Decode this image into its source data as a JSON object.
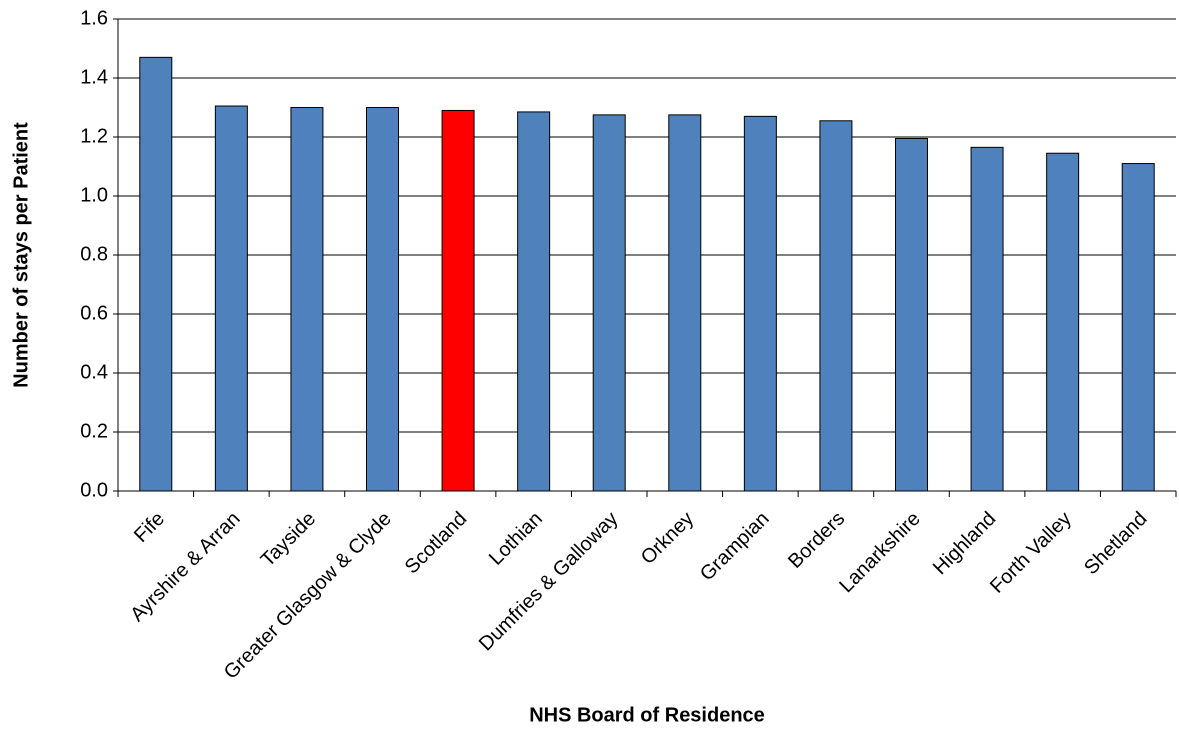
{
  "chart_data": {
    "type": "bar",
    "x_label": "NHS Board of Residence",
    "y_label": "Number of stays per Patient",
    "categories": [
      "Fife",
      "Ayrshire & Arran",
      "Tayside",
      "Greater Glasgow & Clyde",
      "Scotland",
      "Lothian",
      "Dumfries & Galloway",
      "Orkney",
      "Grampian",
      "Borders",
      "Lanarkshire",
      "Highland",
      "Forth Valley",
      "Shetland"
    ],
    "values": [
      1.47,
      1.305,
      1.3,
      1.3,
      1.29,
      1.285,
      1.275,
      1.275,
      1.27,
      1.255,
      1.195,
      1.165,
      1.145,
      1.11
    ],
    "colors": [
      "#4f81bd",
      "#4f81bd",
      "#4f81bd",
      "#4f81bd",
      "#ff0000",
      "#4f81bd",
      "#4f81bd",
      "#4f81bd",
      "#4f81bd",
      "#4f81bd",
      "#4f81bd",
      "#4f81bd",
      "#4f81bd",
      "#4f81bd"
    ],
    "ylim": [
      0,
      1.6
    ],
    "yticks": [
      {
        "value": 0,
        "label": "0.0"
      },
      0.2,
      0.4,
      0.6,
      0.8,
      {
        "value": 1,
        "label": "1.0"
      },
      1.2,
      1.4,
      1.6
    ],
    "grid": true
  }
}
